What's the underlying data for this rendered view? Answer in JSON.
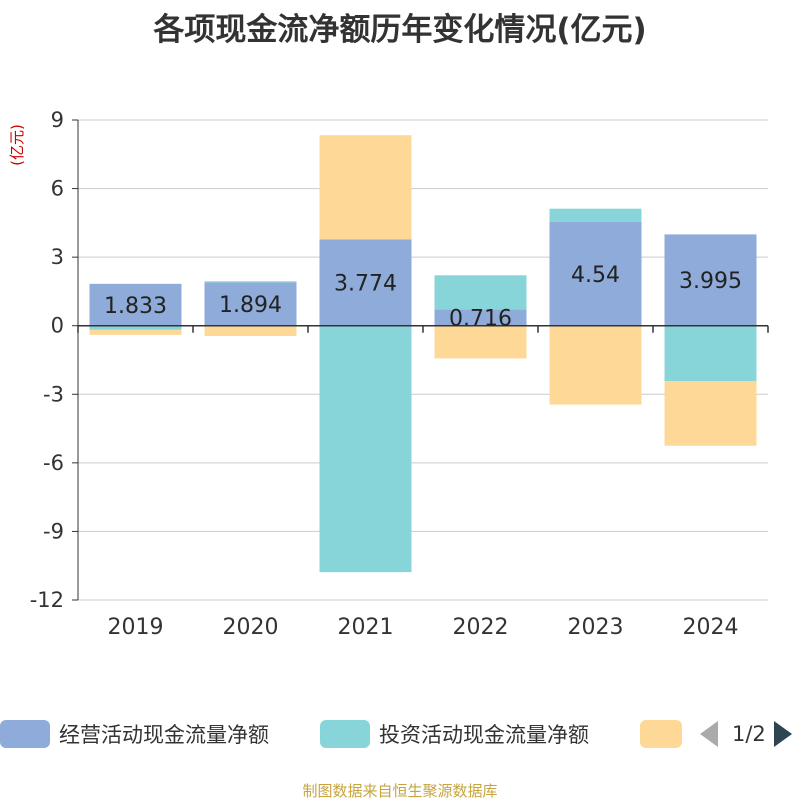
{
  "chart_data": {
    "type": "bar",
    "stacked": true,
    "title": "各项现金流净额历年变化情况(亿元)",
    "ylabel": "(亿元)",
    "categories": [
      "2019",
      "2020",
      "2021",
      "2022",
      "2023",
      "2024"
    ],
    "ylim": [
      -12,
      9
    ],
    "yticks": [
      9,
      6,
      3,
      0,
      -3,
      -6,
      -9,
      -12
    ],
    "grid": true,
    "series": [
      {
        "name": "经营活动现金流量净额",
        "color": "#8fabd9",
        "values": [
          1.833,
          1.894,
          3.774,
          0.716,
          4.54,
          3.995
        ],
        "labels": [
          "1.833",
          "1.894",
          "3.774",
          "0.716",
          "4.54",
          "3.995"
        ]
      },
      {
        "name": "投资活动现金流量净额",
        "color": "#87d5d8",
        "values": [
          -0.18,
          0.05,
          -10.78,
          1.49,
          0.58,
          -2.43
        ]
      },
      {
        "name": "",
        "color": "#fdd897",
        "values": [
          -0.22,
          -0.45,
          4.56,
          -1.43,
          -3.45,
          -2.82
        ]
      }
    ]
  },
  "legend": {
    "page": "1/2"
  },
  "source": "制图数据来自恒生聚源数据库"
}
